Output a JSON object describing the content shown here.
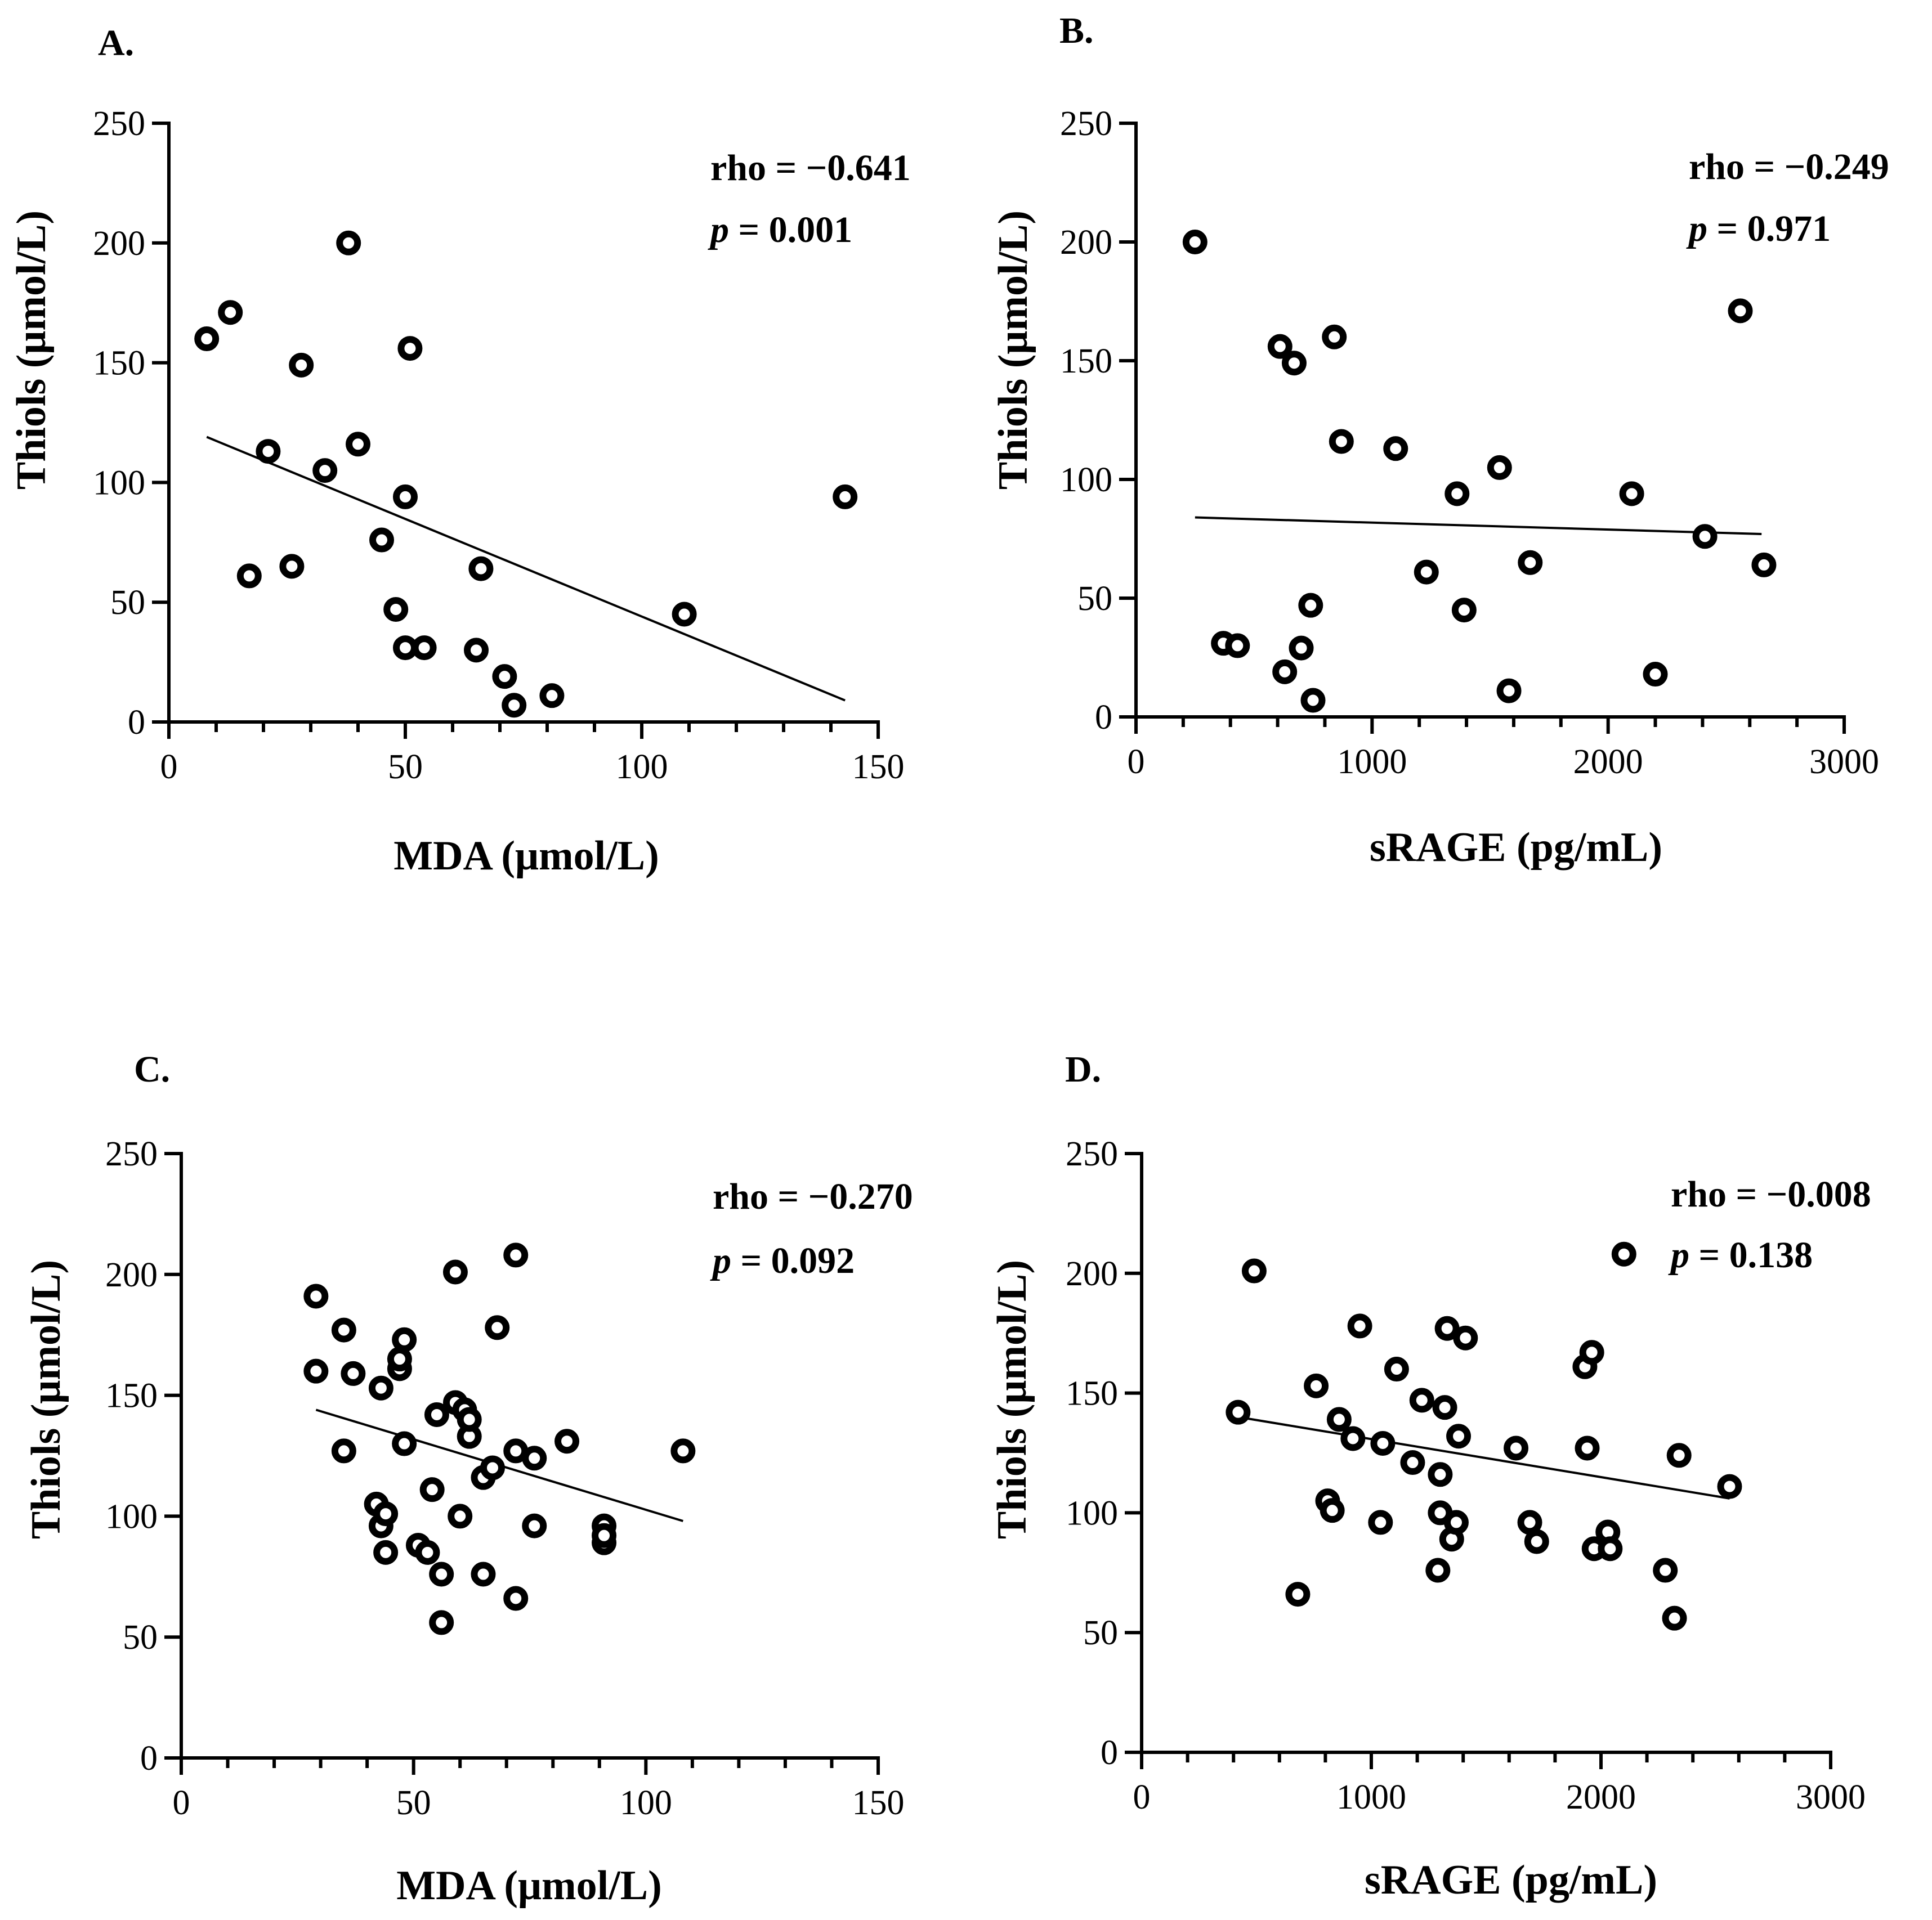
{
  "chart_data": [
    {
      "type": "scatter",
      "panel_label": "A.",
      "xlabel": "MDA (μmol/L)",
      "ylabel": "Thiols (μmol/L)",
      "xlim": [
        0,
        150
      ],
      "ylim": [
        0,
        250
      ],
      "xticks": [
        0,
        50,
        100,
        150
      ],
      "yticks": [
        0,
        50,
        100,
        150,
        200,
        250
      ],
      "xticks_text": [
        "0",
        "50",
        "100",
        "150"
      ],
      "yticks_text": [
        "0",
        "50",
        "100",
        "150",
        "200",
        "250"
      ],
      "rho_text": "rho = −0.641",
      "p_symbol": "p",
      "p_rest": " = 0.001",
      "points": [
        [
          8,
          160
        ],
        [
          13,
          171
        ],
        [
          17,
          61
        ],
        [
          21,
          113
        ],
        [
          26,
          65
        ],
        [
          28,
          149
        ],
        [
          33,
          105
        ],
        [
          38,
          200
        ],
        [
          40,
          116
        ],
        [
          45,
          76
        ],
        [
          48,
          47
        ],
        [
          50,
          31
        ],
        [
          50,
          94
        ],
        [
          51,
          156
        ],
        [
          54,
          31
        ],
        [
          65,
          30
        ],
        [
          66,
          64
        ],
        [
          71,
          19
        ],
        [
          73,
          7
        ],
        [
          81,
          11
        ],
        [
          109,
          45
        ],
        [
          143,
          94
        ]
      ],
      "trend": [
        [
          8,
          119
        ],
        [
          143,
          9
        ]
      ]
    },
    {
      "type": "scatter",
      "panel_label": "B.",
      "xlabel": "sRAGE (pg/mL)",
      "ylabel": "Thiols (μmol/L)",
      "xlim": [
        0,
        3000
      ],
      "ylim": [
        0,
        250
      ],
      "xticks": [
        0,
        1000,
        2000,
        3000
      ],
      "yticks": [
        0,
        50,
        100,
        150,
        200,
        250
      ],
      "xticks_text": [
        "0",
        "1000",
        "2000",
        "3000"
      ],
      "yticks_text": [
        "0",
        "50",
        "100",
        "150",
        "200",
        "250"
      ],
      "rho_text": "rho = −0.249",
      "p_symbol": "p",
      "p_rest": " = 0.971",
      "points": [
        [
          250,
          200
        ],
        [
          370,
          31
        ],
        [
          430,
          30
        ],
        [
          610,
          156
        ],
        [
          630,
          19
        ],
        [
          670,
          149
        ],
        [
          700,
          29
        ],
        [
          740,
          47
        ],
        [
          750,
          7
        ],
        [
          840,
          160
        ],
        [
          870,
          116
        ],
        [
          1100,
          113
        ],
        [
          1230,
          61
        ],
        [
          1360,
          94
        ],
        [
          1390,
          45
        ],
        [
          1540,
          105
        ],
        [
          1580,
          11
        ],
        [
          1670,
          65
        ],
        [
          2100,
          94
        ],
        [
          2200,
          18
        ],
        [
          2410,
          76
        ],
        [
          2560,
          171
        ],
        [
          2660,
          64
        ]
      ],
      "trend": [
        [
          250,
          84
        ],
        [
          2650,
          77
        ]
      ]
    },
    {
      "type": "scatter",
      "panel_label": "C.",
      "xlabel": "MDA (μmol/L)",
      "ylabel": "Thiols (μmol/L)",
      "xlim": [
        0,
        150
      ],
      "ylim": [
        0,
        250
      ],
      "xticks": [
        0,
        50,
        100,
        150
      ],
      "yticks": [
        0,
        50,
        100,
        150,
        200,
        250
      ],
      "xticks_text": [
        "0",
        "50",
        "100",
        "150"
      ],
      "yticks_text": [
        "0",
        "50",
        "100",
        "150",
        "200",
        "250"
      ],
      "rho_text": "rho = −0.270",
      "p_symbol": "p",
      "p_rest": " = 0.092",
      "points": [
        [
          29,
          191
        ],
        [
          29,
          160
        ],
        [
          35,
          127
        ],
        [
          35,
          177
        ],
        [
          37,
          159
        ],
        [
          42,
          105
        ],
        [
          43,
          153
        ],
        [
          43,
          96
        ],
        [
          44,
          85
        ],
        [
          44,
          101
        ],
        [
          47,
          161
        ],
        [
          47,
          165
        ],
        [
          48,
          173
        ],
        [
          48,
          130
        ],
        [
          51,
          88
        ],
        [
          53,
          85
        ],
        [
          54,
          111
        ],
        [
          55,
          142
        ],
        [
          56,
          56
        ],
        [
          56,
          76
        ],
        [
          59,
          201
        ],
        [
          59,
          147
        ],
        [
          60,
          100
        ],
        [
          61,
          144
        ],
        [
          62,
          133
        ],
        [
          62,
          140
        ],
        [
          65,
          116
        ],
        [
          65,
          76
        ],
        [
          67,
          120
        ],
        [
          68,
          178
        ],
        [
          72,
          208
        ],
        [
          72,
          127
        ],
        [
          72,
          66
        ],
        [
          76,
          124
        ],
        [
          76,
          96
        ],
        [
          83,
          131
        ],
        [
          91,
          96
        ],
        [
          91,
          89
        ],
        [
          91,
          92
        ],
        [
          108,
          127
        ]
      ],
      "trend": [
        [
          29,
          144
        ],
        [
          108,
          98
        ]
      ]
    },
    {
      "type": "scatter",
      "panel_label": "D.",
      "xlabel": "sRAGE (pg/mL)",
      "ylabel": "Thiols (μmol/L)",
      "xlim": [
        0,
        3000
      ],
      "ylim": [
        0,
        250
      ],
      "xticks": [
        0,
        1000,
        2000,
        3000
      ],
      "yticks": [
        0,
        50,
        100,
        150,
        200,
        250
      ],
      "xticks_text": [
        "0",
        "1000",
        "2000",
        "3000"
      ],
      "yticks_text": [
        "0",
        "50",
        "100",
        "150",
        "200",
        "250"
      ],
      "rho_text": "rho = −0.008",
      "p_symbol": "p",
      "p_rest": " = 0.138",
      "points": [
        [
          420,
          142
        ],
        [
          490,
          201
        ],
        [
          680,
          66
        ],
        [
          760,
          153
        ],
        [
          810,
          105
        ],
        [
          830,
          101
        ],
        [
          860,
          139
        ],
        [
          920,
          131
        ],
        [
          950,
          178
        ],
        [
          1040,
          96
        ],
        [
          1050,
          129
        ],
        [
          1110,
          160
        ],
        [
          1180,
          121
        ],
        [
          1220,
          147
        ],
        [
          1290,
          76
        ],
        [
          1300,
          116
        ],
        [
          1300,
          100
        ],
        [
          1320,
          144
        ],
        [
          1330,
          177
        ],
        [
          1350,
          89
        ],
        [
          1370,
          96
        ],
        [
          1380,
          132
        ],
        [
          1410,
          173
        ],
        [
          1630,
          127
        ],
        [
          1690,
          96
        ],
        [
          1720,
          88
        ],
        [
          1930,
          161
        ],
        [
          1940,
          127
        ],
        [
          1960,
          167
        ],
        [
          1970,
          85
        ],
        [
          2030,
          92
        ],
        [
          2040,
          85
        ],
        [
          2100,
          208
        ],
        [
          2280,
          76
        ],
        [
          2320,
          56
        ],
        [
          2340,
          124
        ],
        [
          2560,
          111
        ]
      ],
      "trend": [
        [
          420,
          140
        ],
        [
          2560,
          106
        ]
      ]
    }
  ]
}
